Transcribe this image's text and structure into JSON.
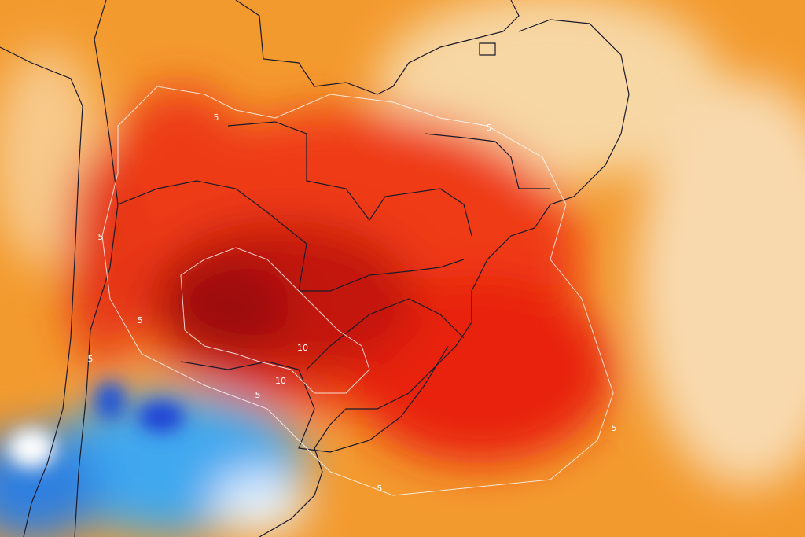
{
  "map": {
    "contour_labels": [
      "5",
      "5",
      "5",
      "5",
      "5",
      "5",
      "5",
      "5",
      "10",
      "10"
    ]
  }
}
